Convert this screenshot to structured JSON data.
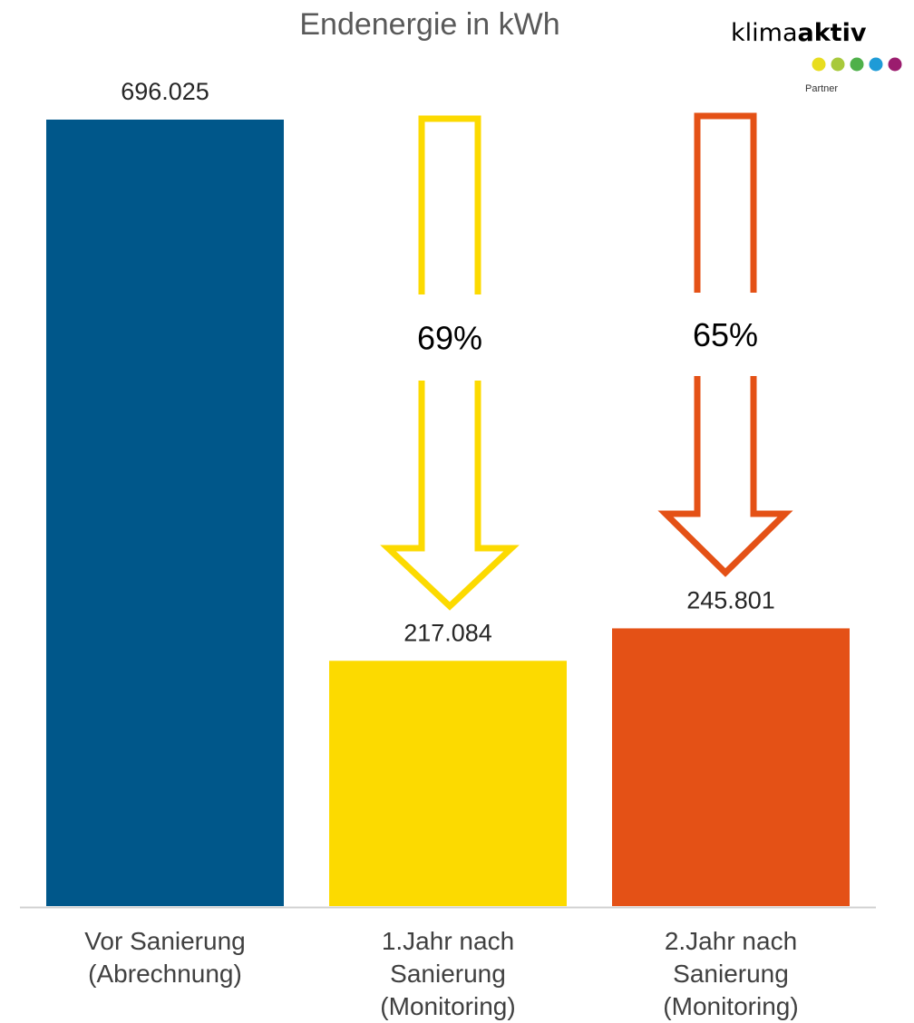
{
  "chart_data": {
    "type": "bar",
    "title": "Endenergie in kWh",
    "categories": [
      [
        "Vor Sanierung",
        "(Abrechnung)"
      ],
      [
        "1.Jahr nach",
        "Sanierung",
        "(Monitoring)"
      ],
      [
        "2.Jahr nach",
        "Sanierung",
        "(Monitoring)"
      ]
    ],
    "values": [
      696025,
      217084,
      245801
    ],
    "value_labels": [
      "696.025",
      "217.084",
      "245.801"
    ],
    "colors": [
      "#00578A",
      "#FCDA00",
      "#E45116"
    ],
    "reductions": [
      {
        "label": "69%",
        "target_index": 1,
        "color": "#FCDA00"
      },
      {
        "label": "65%",
        "target_index": 2,
        "color": "#E45116"
      }
    ],
    "ylim": [
      0,
      696025
    ],
    "grid": false,
    "legend": "none",
    "xlabel": "",
    "ylabel": ""
  },
  "logo": {
    "word_regular": "klima",
    "word_bold": "aktiv",
    "sub": "Partner",
    "dot_colors": [
      "#E8DD1F",
      "#A8C93B",
      "#4FB04A",
      "#1E9BD7",
      "#9B1C6E"
    ]
  }
}
